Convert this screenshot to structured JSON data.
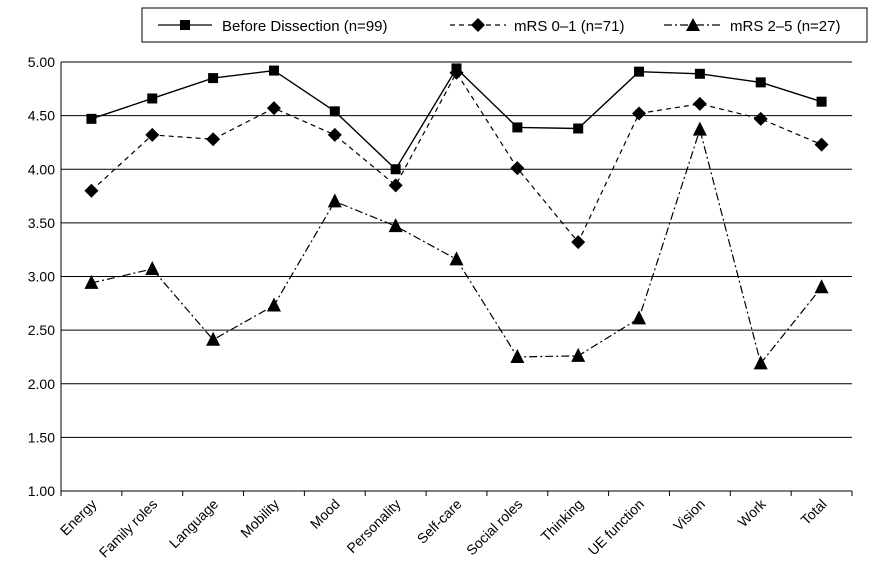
{
  "chart_data": {
    "type": "line",
    "categories": [
      "Energy",
      "Family roles",
      "Language",
      "Mobility",
      "Mood",
      "Personality",
      "Self-care",
      "Social roles",
      "Thinking",
      "UE function",
      "Vision",
      "Work",
      "Total"
    ],
    "ylim": [
      1.0,
      5.0
    ],
    "yticks": [
      "1.00",
      "1.50",
      "2.00",
      "2.50",
      "3.00",
      "3.50",
      "4.00",
      "4.50",
      "5.00"
    ],
    "grid": true,
    "legend_position": "top-right",
    "series": [
      {
        "name": "Before Dissection (n=99)",
        "marker": "square",
        "line_style": "solid",
        "values": [
          4.47,
          4.66,
          4.85,
          4.92,
          4.54,
          4.0,
          4.94,
          4.39,
          4.38,
          4.91,
          4.89,
          4.81,
          4.63
        ]
      },
      {
        "name": "mRS 0–1 (n=71)",
        "marker": "diamond",
        "line_style": "dashed",
        "values": [
          3.8,
          4.32,
          4.28,
          4.57,
          4.32,
          3.85,
          4.9,
          4.01,
          3.32,
          4.52,
          4.61,
          4.47,
          4.23
        ]
      },
      {
        "name": "mRS 2–5 (n=27)",
        "marker": "triangle",
        "line_style": "dashdot",
        "values": [
          2.94,
          3.07,
          2.41,
          2.73,
          3.7,
          3.47,
          3.16,
          2.25,
          2.26,
          2.61,
          4.37,
          2.19,
          2.9
        ]
      }
    ]
  }
}
